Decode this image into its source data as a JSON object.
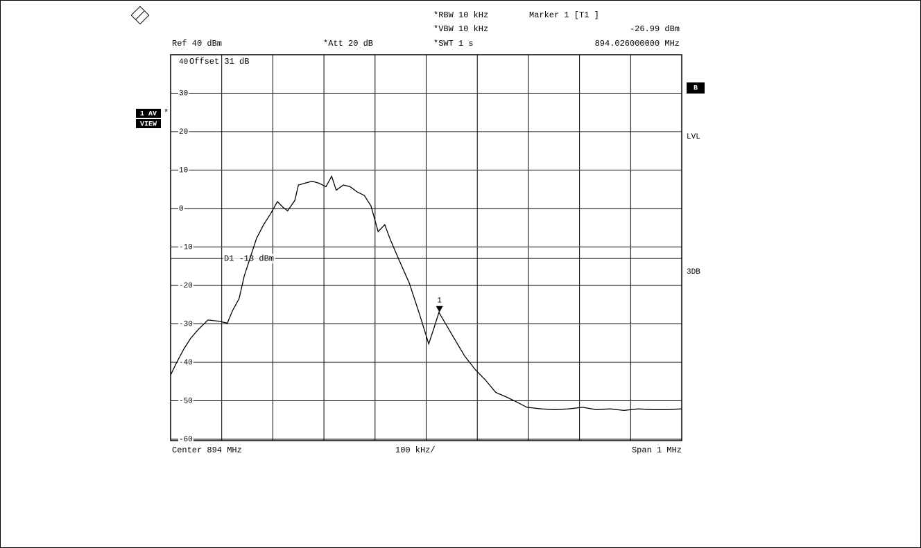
{
  "chart_data": {
    "type": "line",
    "ref_label": "Ref  40 dBm",
    "att_label": "*Att  20 dB",
    "rbw_label": "*RBW 10 kHz",
    "vbw_label": "*VBW 10 kHz",
    "swt_label": "*SWT 1 s",
    "offset_label": "Offset  31 dB",
    "trace_label": "1 AV",
    "trace_flag": "*",
    "view_label": "VIEW",
    "side_labels": [
      "B",
      "LVL",
      "3DB"
    ],
    "center_label": "Center 894 MHz",
    "div_label": "100 kHz/",
    "span_label": "Span 1 MHz",
    "marker": {
      "name": "Marker 1 [T1 ]",
      "symbol_label": "1",
      "x": 894.026,
      "x_label": "894.026000000 MHz",
      "value": -26.99,
      "value_label": "-26.99 dBm"
    },
    "display_line": {
      "label": "D1  -13  dBm",
      "value": -13
    },
    "color": "#000000",
    "xlim": [
      893.5,
      894.5
    ],
    "xticks": [
      893.5,
      893.6,
      893.7,
      893.8,
      893.9,
      894.0,
      894.1,
      894.2,
      894.3,
      894.4,
      894.5
    ],
    "ylim": [
      -60,
      40
    ],
    "yticks": [
      40,
      30,
      20,
      10,
      0,
      -10,
      -20,
      -30,
      -40,
      -50,
      -60
    ],
    "grid": true,
    "x": [
      893.5,
      893.512,
      893.526,
      893.539,
      893.553,
      893.573,
      893.594,
      893.611,
      893.621,
      893.634,
      893.644,
      893.655,
      893.668,
      893.682,
      893.695,
      893.709,
      893.72,
      893.729,
      893.743,
      893.75,
      893.763,
      893.777,
      893.79,
      893.804,
      893.815,
      893.824,
      893.838,
      893.851,
      893.865,
      893.879,
      893.892,
      893.906,
      893.919,
      893.929,
      893.946,
      893.967,
      893.987,
      894.005,
      894.014,
      894.025,
      894.039,
      894.055,
      894.075,
      894.096,
      894.116,
      894.136,
      894.157,
      894.177,
      894.197,
      894.225,
      894.252,
      894.279,
      894.306,
      894.333,
      894.36,
      894.387,
      894.415,
      894.442,
      894.469,
      894.5
    ],
    "values": [
      -43.3,
      -40,
      -36.5,
      -33.8,
      -31.6,
      -29,
      -29.3,
      -29.8,
      -26.6,
      -23.4,
      -17.6,
      -13.1,
      -7.8,
      -4.2,
      -1.5,
      1.8,
      0.3,
      -0.6,
      2.1,
      6.1,
      6.6,
      7.1,
      6.6,
      5.7,
      8.4,
      4.8,
      6.1,
      5.7,
      4.3,
      3.4,
      0.7,
      -6,
      -4.2,
      -7.8,
      -13.1,
      -19.4,
      -27.5,
      -35.2,
      -31.6,
      -27,
      -30.2,
      -33.8,
      -38.3,
      -41.9,
      -44.6,
      -47.8,
      -49,
      -50.3,
      -51.7,
      -52.1,
      -52.3,
      -52.1,
      -51.7,
      -52.3,
      -52.1,
      -52.5,
      -52.1,
      -52.3,
      -52.3,
      -52.1
    ]
  }
}
